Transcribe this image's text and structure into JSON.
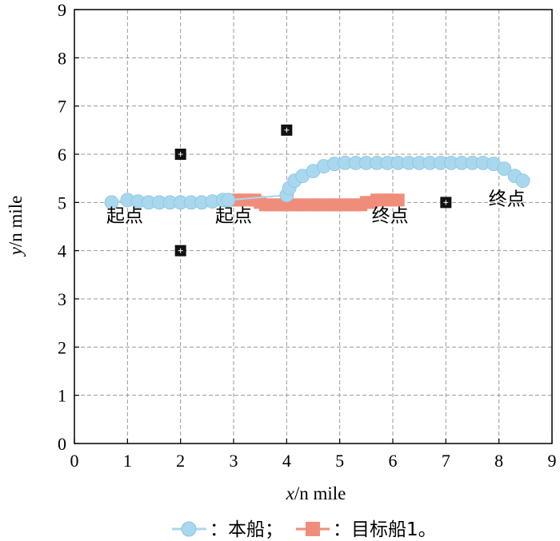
{
  "chart_data": {
    "type": "scatter",
    "title": "",
    "xlabel_var": "x",
    "xlabel_unit": "/n mile",
    "ylabel_var": "y",
    "ylabel_unit": "/n mile",
    "xlim": [
      0,
      9
    ],
    "ylim": [
      0,
      9
    ],
    "xticks": [
      "0",
      "1",
      "2",
      "3",
      "4",
      "5",
      "6",
      "7",
      "8",
      "9"
    ],
    "yticks": [
      "0",
      "1",
      "2",
      "3",
      "4",
      "5",
      "6",
      "7",
      "8",
      "9"
    ],
    "grid": true,
    "legend_placement": "bottom",
    "series": [
      {
        "name": "本船",
        "legend_label": "：本船；",
        "color": "#a9d8ee",
        "marker": "circle",
        "x": [
          0.7,
          1.0,
          1.2,
          1.4,
          1.6,
          1.8,
          2.0,
          2.2,
          2.4,
          2.6,
          2.8,
          2.9,
          4.0,
          4.05,
          4.15,
          4.3,
          4.5,
          4.7,
          4.9,
          5.1,
          5.3,
          5.5,
          5.7,
          5.9,
          6.1,
          6.3,
          6.5,
          6.7,
          6.9,
          7.1,
          7.3,
          7.5,
          7.7,
          7.9,
          8.1,
          8.3,
          8.45
        ],
        "y": [
          5.0,
          5.05,
          5.02,
          5.0,
          5.0,
          5.0,
          5.0,
          5.0,
          5.0,
          5.02,
          5.05,
          5.05,
          5.15,
          5.3,
          5.45,
          5.55,
          5.65,
          5.75,
          5.8,
          5.82,
          5.82,
          5.82,
          5.82,
          5.82,
          5.82,
          5.82,
          5.82,
          5.82,
          5.82,
          5.82,
          5.82,
          5.82,
          5.82,
          5.8,
          5.7,
          5.55,
          5.45
        ]
      },
      {
        "name": "目标船1",
        "legend_label": "：目标船1。",
        "color": "#f08d7a",
        "marker": "square",
        "x": [
          3.0,
          3.1,
          3.2,
          3.3,
          3.4,
          3.5,
          3.6,
          3.7,
          3.8,
          3.9,
          4.0,
          4.1,
          4.2,
          4.3,
          4.4,
          4.5,
          4.6,
          4.7,
          4.8,
          4.9,
          5.0,
          5.1,
          5.2,
          5.3,
          5.4,
          5.5,
          5.6,
          5.7,
          5.8,
          5.9,
          6.0,
          6.1
        ],
        "y": [
          5.05,
          5.05,
          5.05,
          5.05,
          5.05,
          5.0,
          4.95,
          4.95,
          4.95,
          4.95,
          4.95,
          4.95,
          4.95,
          4.95,
          4.95,
          4.95,
          4.95,
          4.95,
          4.95,
          4.95,
          4.95,
          4.95,
          4.95,
          4.95,
          4.95,
          5.0,
          5.0,
          5.05,
          5.05,
          5.05,
          5.05,
          5.05
        ]
      },
      {
        "name": "obstacles",
        "color": "#111111",
        "marker": "square",
        "x": [
          2,
          2,
          4,
          7
        ],
        "y": [
          6,
          4,
          6.5,
          5
        ]
      }
    ],
    "annotations": [
      {
        "text": "起点",
        "x": 0.95,
        "y": 4.6
      },
      {
        "text": "起点",
        "x": 3.0,
        "y": 4.6
      },
      {
        "text": "终点",
        "x": 5.95,
        "y": 4.6
      },
      {
        "text": "终点",
        "x": 8.15,
        "y": 4.95
      }
    ]
  }
}
